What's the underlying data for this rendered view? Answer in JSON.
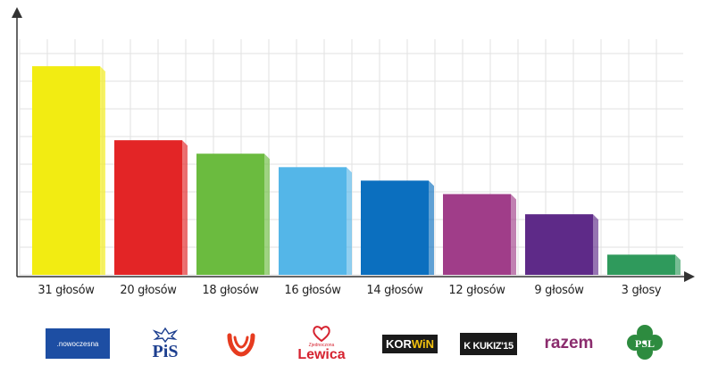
{
  "chart_data": {
    "type": "bar",
    "title": "",
    "xlabel": "",
    "ylabel": "",
    "ylim": [
      0,
      35
    ],
    "grid": true,
    "categories": [
      "Nowoczesna",
      "PiS",
      "PO",
      "Zjednoczona Lewica",
      "KORWiN",
      "Kukiz'15",
      "razem",
      "PSL"
    ],
    "values": [
      31,
      20,
      18,
      16,
      14,
      12,
      9,
      3
    ],
    "value_labels": [
      "31 głosów",
      "20 głosów",
      "18 głosów",
      "16 głosów",
      "14 głosów",
      "12 głosów",
      "9 głosów",
      "3 głosy"
    ],
    "colors": [
      "#f2ec12",
      "#e32526",
      "#6bbb3f",
      "#54b6e8",
      "#0b6fbf",
      "#a03d89",
      "#5e2a88",
      "#2f9a5c"
    ]
  },
  "logos": {
    "nowoczesna": ".nowoczesna",
    "pis": "PiS",
    "lewica_top": "Zjednoczona",
    "lewica": "Lewica",
    "korwin_a": "KOR",
    "korwin_b": "WiN",
    "kukiz": "K KUKIZ'15",
    "razem": "razem",
    "psl": "PSL"
  }
}
